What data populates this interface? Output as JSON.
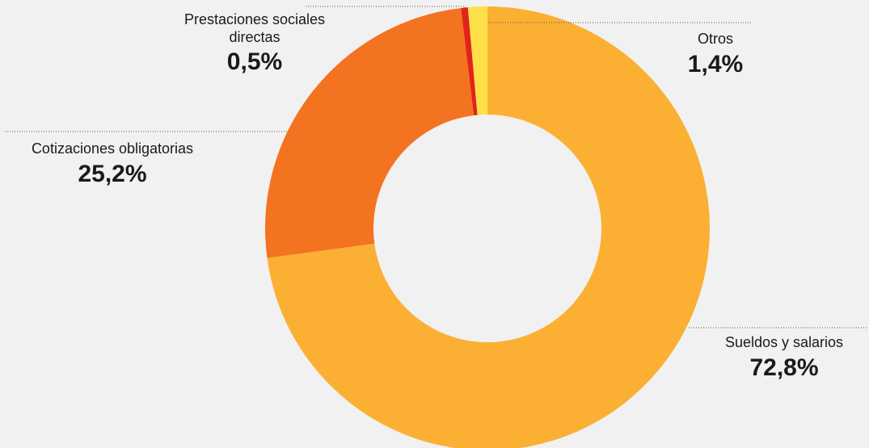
{
  "chart_data": {
    "type": "pie",
    "donut": true,
    "categories": [
      "Sueldos y salarios",
      "Cotizaciones obligatorias",
      "Prestaciones sociales directas",
      "Otros"
    ],
    "values": [
      72.8,
      25.2,
      0.5,
      1.4
    ],
    "labels": [
      "72,8%",
      "25,2%",
      "0,5%",
      "1,4%"
    ],
    "colors": [
      "#fbb034",
      "#f37321",
      "#e2231a",
      "#fde047"
    ],
    "label_names": {
      "sueldos": "Sueldos y salarios",
      "cotizaciones": "Cotizaciones obligatorias",
      "prestaciones_line1": "Prestaciones sociales",
      "prestaciones_line2": "directas",
      "otros": "Otros"
    },
    "label_values": {
      "sueldos": "72,8%",
      "cotizaciones": "25,2%",
      "prestaciones": "0,5%",
      "otros": "1,4%"
    }
  }
}
